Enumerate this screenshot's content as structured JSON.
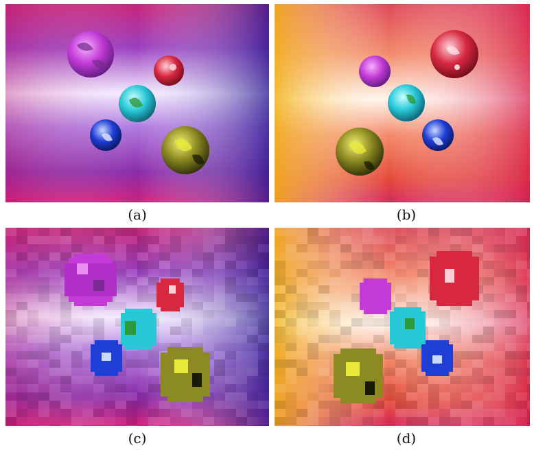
{
  "panels": [
    {
      "id": "a",
      "caption": "(a)",
      "palette": "purple-magenta",
      "render": "smooth"
    },
    {
      "id": "b",
      "caption": "(b)",
      "palette": "gold-red",
      "render": "smooth"
    },
    {
      "id": "c",
      "caption": "(c)",
      "palette": "purple-magenta",
      "render": "blocky"
    },
    {
      "id": "d",
      "caption": "(d)",
      "palette": "gold-red",
      "render": "blocky"
    }
  ],
  "colors": {
    "purple_edge": "#c8247a",
    "purple_dark": "#3a1c86",
    "purple_mid": "#a05ad8",
    "center_glow": "#f4ecff",
    "gold_edge": "#f2b21a",
    "red_edge": "#d6194e",
    "sphere_magenta": "#c33ad6",
    "sphere_red": "#d82840",
    "sphere_cyan": "#28c8d8",
    "sphere_blue": "#1e3ed6",
    "sphere_olive": "#8c8a22"
  }
}
